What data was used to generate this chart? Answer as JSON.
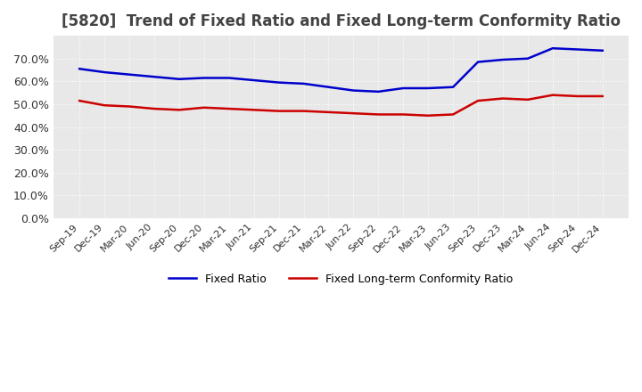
{
  "title": "[5820]  Trend of Fixed Ratio and Fixed Long-term Conformity Ratio",
  "title_fontsize": 12,
  "background_color": "#ffffff",
  "plot_bg_color": "#e8e8e8",
  "grid_color": "#ffffff",
  "x_labels": [
    "Sep-19",
    "Dec-19",
    "Mar-20",
    "Jun-20",
    "Sep-20",
    "Dec-20",
    "Mar-21",
    "Jun-21",
    "Sep-21",
    "Dec-21",
    "Mar-22",
    "Jun-22",
    "Sep-22",
    "Dec-22",
    "Mar-23",
    "Jun-23",
    "Sep-23",
    "Dec-23",
    "Mar-24",
    "Jun-24",
    "Sep-24",
    "Dec-24"
  ],
  "fixed_ratio": [
    65.5,
    64.0,
    63.0,
    62.0,
    61.0,
    61.5,
    61.5,
    60.5,
    59.5,
    59.0,
    57.5,
    56.0,
    55.5,
    57.0,
    57.0,
    57.5,
    68.5,
    69.5,
    70.0,
    74.5,
    74.0,
    73.5
  ],
  "fixed_lt_ratio": [
    51.5,
    49.5,
    49.0,
    48.0,
    47.5,
    48.5,
    48.0,
    47.5,
    47.0,
    47.0,
    46.5,
    46.0,
    45.5,
    45.5,
    45.0,
    45.5,
    51.5,
    52.5,
    52.0,
    54.0,
    53.5,
    53.5
  ],
  "fixed_ratio_color": "#0000cc",
  "fixed_lt_ratio_color": "#cc0000",
  "ylim": [
    0,
    80
  ],
  "yticks": [
    0,
    10,
    20,
    30,
    40,
    50,
    60,
    70
  ],
  "legend_fixed": "Fixed Ratio",
  "legend_lt": "Fixed Long-term Conformity Ratio"
}
